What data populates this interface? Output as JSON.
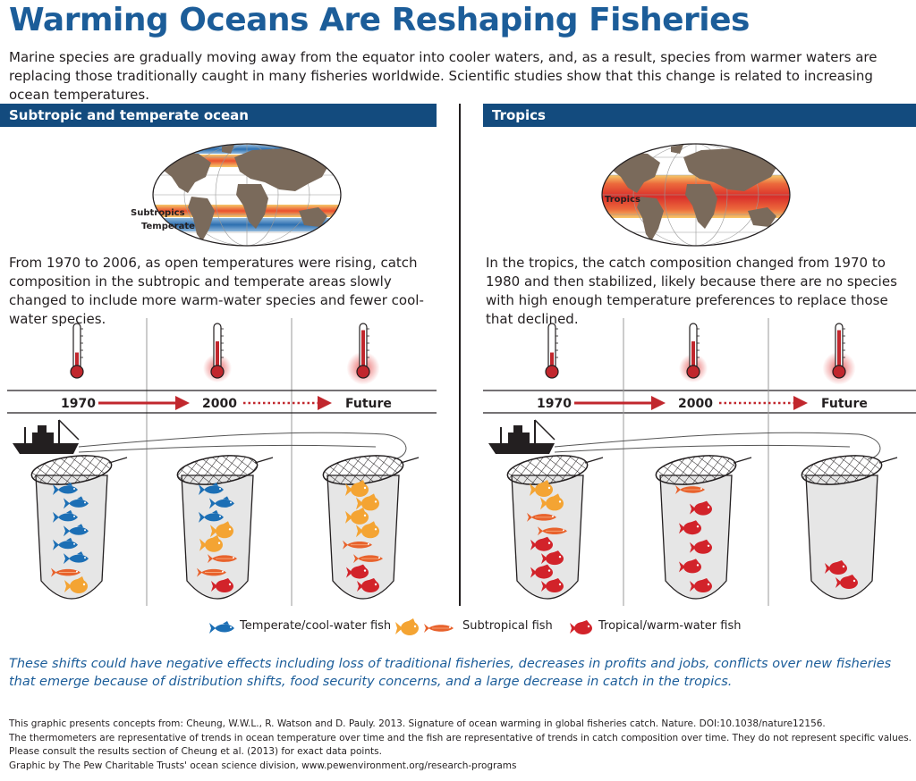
{
  "title": "Warming Oceans Are Reshaping Fisheries",
  "intro": "Marine species are gradually moving away from the equator into cooler waters, and, as a result, species from warmer waters are replacing those traditionally caught in many fisheries worldwide. Scientific studies show that this change is related to increasing ocean temperatures.",
  "left": {
    "header": "Subtropic and temperate ocean",
    "map_labels": [
      "Subtropics",
      "Temperate"
    ],
    "description": "From 1970 to 2006, as open temperatures were rising, catch composition in the subtropic and temperate areas slowly changed to include more warm-water species and fewer cool-water species.",
    "timeline": [
      "1970",
      "2000",
      "Future"
    ],
    "thermometer_levels": [
      0.35,
      0.6,
      0.85
    ],
    "nets": [
      [
        "temperate",
        "temperate",
        "temperate",
        "temperate",
        "temperate",
        "temperate",
        "subtropical-long",
        "subtropical"
      ],
      [
        "temperate",
        "temperate",
        "temperate",
        "subtropical",
        "subtropical",
        "subtropical-long",
        "subtropical-long",
        "tropical"
      ],
      [
        "subtropical",
        "subtropical",
        "subtropical",
        "subtropical",
        "subtropical-long",
        "subtropical-long",
        "tropical",
        "tropical"
      ]
    ]
  },
  "right": {
    "header": "Tropics",
    "map_labels": [
      "Tropics"
    ],
    "description": "In the tropics, the catch composition changed from 1970 to 1980 and then stabilized, likely because there are no species with high enough temperature preferences to replace those that declined.",
    "timeline": [
      "1970",
      "2000",
      "Future"
    ],
    "thermometer_levels": [
      0.35,
      0.6,
      0.85
    ],
    "nets": [
      [
        "subtropical",
        "subtropical",
        "subtropical-long",
        "subtropical-long",
        "tropical",
        "tropical",
        "tropical",
        "tropical"
      ],
      [
        "subtropical-long",
        "tropical",
        "tropical",
        "tropical",
        "tropical",
        "tropical"
      ],
      [
        "tropical",
        "tropical"
      ]
    ]
  },
  "legend": {
    "temperate": "Temperate/cool-water fish",
    "subtropical": "Subtropical fish",
    "tropical": "Tropical/warm-water fish"
  },
  "colors": {
    "temperate": "#1c6fb5",
    "subtropical": "#f4a433",
    "subtropical_long": "#e8622c",
    "tropical": "#d2232a",
    "header": "#134b7e",
    "title": "#1c5d99",
    "arrow": "#c1272d"
  },
  "note": "These shifts could have negative effects including loss of traditional fisheries, decreases in profits and jobs, conflicts over new fisheries that emerge because of distribution shifts, food security concerns, and a large decrease in catch in the tropics.",
  "footnotes": [
    "This graphic presents concepts from: Cheung, W.W.L., R. Watson and D. Pauly. 2013. Signature of ocean warming in global fisheries catch. Nature. DOI:10.1038/nature12156.",
    "The thermometers are representative of trends in ocean temperature over time and the fish are representative of trends in catch composition over time. They do not represent specific values.",
    "Please consult the results section of Cheung et al. (2013) for exact data points.",
    "Graphic by The Pew Charitable Trusts' ocean science division, www.pewenvironment.org/research-programs"
  ]
}
